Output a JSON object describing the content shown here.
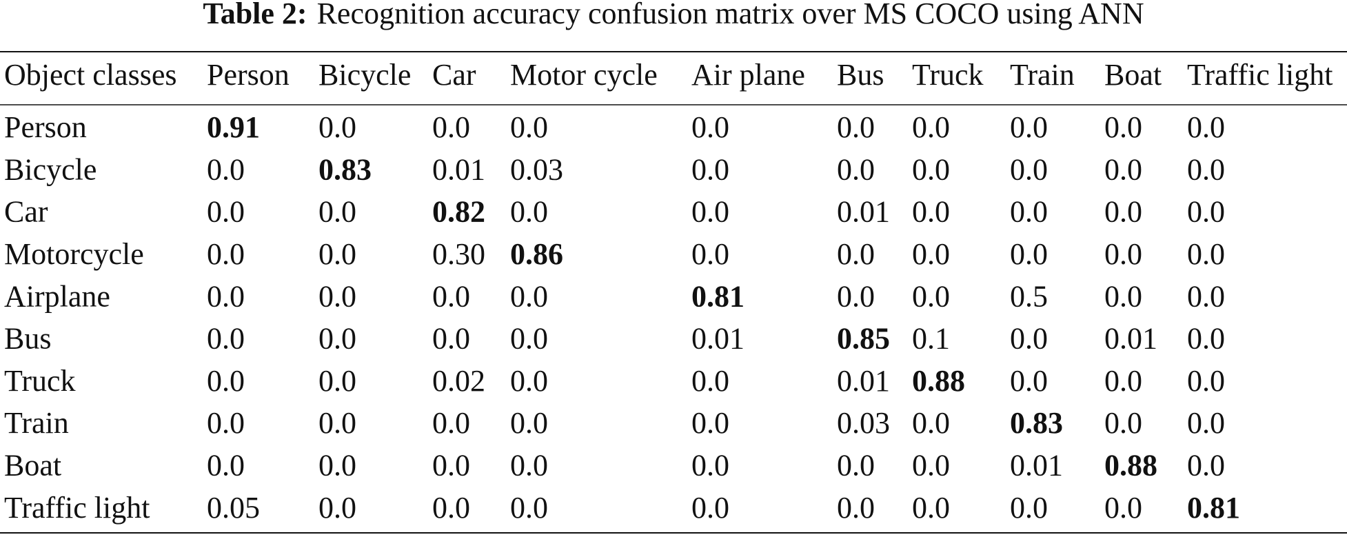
{
  "caption": {
    "label": "Table 2:",
    "text": "Recognition accuracy confusion matrix over MS COCO using ANN"
  },
  "table": {
    "header": [
      "Object classes",
      "Person",
      "Bicycle",
      "Car",
      "Motor cycle",
      "Air plane",
      "Bus",
      "Truck",
      "Train",
      "Boat",
      "Traffic light"
    ],
    "rows": [
      [
        "Person",
        "0.91",
        "0.0",
        "0.0",
        "0.0",
        "0.0",
        "0.0",
        "0.0",
        "0.0",
        "0.0",
        "0.0"
      ],
      [
        "Bicycle",
        "0.0",
        "0.83",
        "0.01",
        "0.03",
        "0.0",
        "0.0",
        "0.0",
        "0.0",
        "0.0",
        "0.0"
      ],
      [
        "Car",
        "0.0",
        "0.0",
        "0.82",
        "0.0",
        "0.0",
        "0.01",
        "0.0",
        "0.0",
        "0.0",
        "0.0"
      ],
      [
        "Motorcycle",
        "0.0",
        "0.0",
        "0.30",
        "0.86",
        "0.0",
        "0.0",
        "0.0",
        "0.0",
        "0.0",
        "0.0"
      ],
      [
        "Airplane",
        "0.0",
        "0.0",
        "0.0",
        "0.0",
        "0.81",
        "0.0",
        "0.0",
        "0.5",
        "0.0",
        "0.0"
      ],
      [
        "Bus",
        "0.0",
        "0.0",
        "0.0",
        "0.0",
        "0.01",
        "0.85",
        "0.1",
        "0.0",
        "0.01",
        "0.0"
      ],
      [
        "Truck",
        "0.0",
        "0.0",
        "0.02",
        "0.0",
        "0.0",
        "0.01",
        "0.88",
        "0.0",
        "0.0",
        "0.0"
      ],
      [
        "Train",
        "0.0",
        "0.0",
        "0.0",
        "0.0",
        "0.0",
        "0.03",
        "0.0",
        "0.83",
        "0.0",
        "0.0"
      ],
      [
        "Boat",
        "0.0",
        "0.0",
        "0.0",
        "0.0",
        "0.0",
        "0.0",
        "0.0",
        "0.01",
        "0.88",
        "0.0"
      ],
      [
        "Traffic light",
        "0.05",
        "0.0",
        "0.0",
        "0.0",
        "0.0",
        "0.0",
        "0.0",
        "0.0",
        "0.0",
        "0.81"
      ]
    ]
  }
}
